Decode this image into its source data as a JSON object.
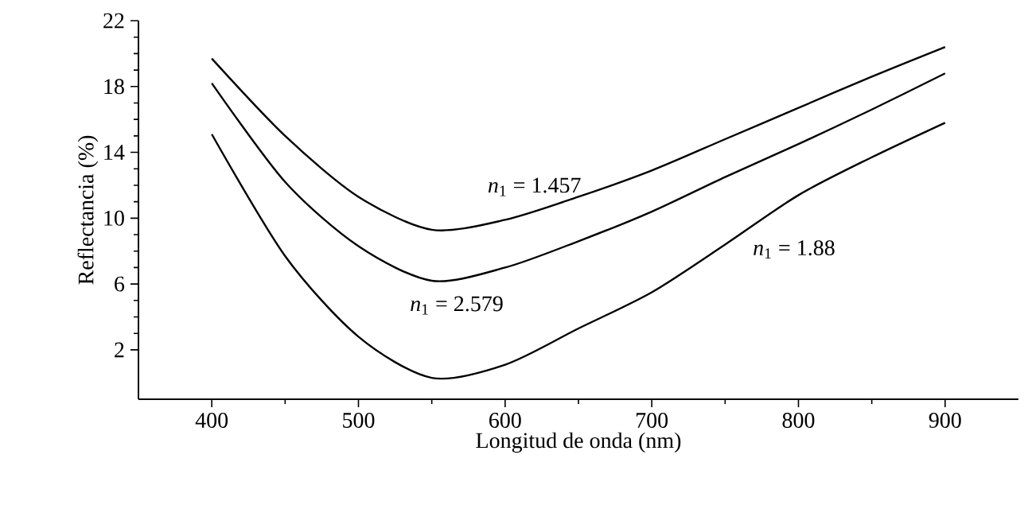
{
  "chart_data": {
    "type": "line",
    "xlabel": "Longitud de onda (nm)",
    "ylabel": "Reflectancia (%)",
    "x": [
      400,
      450,
      500,
      550,
      600,
      650,
      700,
      750,
      800,
      850,
      900
    ],
    "series": [
      {
        "name": "*n*$_{1}$ = 1.457",
        "color": "#000000",
        "values": [
          19.7,
          15.0,
          11.3,
          9.3,
          9.9,
          11.3,
          12.9,
          14.8,
          16.7,
          18.6,
          20.4
        ]
      },
      {
        "name": "*n*$_{1}$ = 2.579",
        "color": "#000000",
        "values": [
          18.2,
          12.2,
          8.3,
          6.2,
          7.0,
          8.6,
          10.4,
          12.5,
          14.5,
          16.6,
          18.8
        ]
      },
      {
        "name": "*n*$_{1}$ = 1.88",
        "color": "#000000",
        "values": [
          15.1,
          7.7,
          2.8,
          0.3,
          1.1,
          3.3,
          5.5,
          8.4,
          11.4,
          13.7,
          15.8
        ]
      }
    ],
    "xlim": [
      350,
      950
    ],
    "ylim": [
      -1,
      22
    ],
    "xticks": [
      400,
      500,
      600,
      700,
      800,
      900
    ],
    "yticks": [
      2,
      6,
      10,
      14,
      18,
      22
    ],
    "grid": false,
    "legend": false,
    "marker": "none",
    "line_style": "solid"
  }
}
